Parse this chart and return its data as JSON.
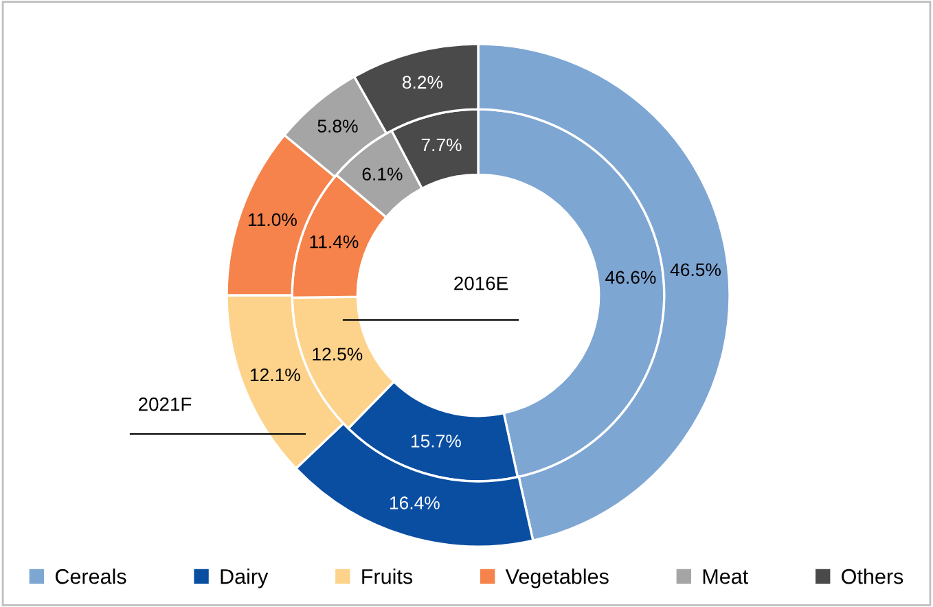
{
  "chart_data": {
    "type": "donut",
    "categories": [
      "Cereals",
      "Dairy",
      "Fruits",
      "Vegetables",
      "Meat",
      "Others"
    ],
    "colors": [
      "#7ea6d3",
      "#0a4ea2",
      "#fdd38c",
      "#f5834b",
      "#a5a5a5",
      "#4a4a4a"
    ],
    "legend": "bottom",
    "series": [
      {
        "name": "2016E",
        "values": [
          46.6,
          15.7,
          12.5,
          11.4,
          6.1,
          7.7
        ],
        "value_labels": [
          "46.6%",
          "15.7%",
          "12.5%",
          "11.4%",
          "6.1%",
          "7.7%"
        ]
      },
      {
        "name": "2021F",
        "values": [
          46.5,
          16.4,
          12.1,
          11.0,
          5.8,
          8.2
        ],
        "value_labels": [
          "46.5%",
          "16.4%",
          "12.1%",
          "11.0%",
          "5.8%",
          "8.2%"
        ]
      }
    ]
  }
}
